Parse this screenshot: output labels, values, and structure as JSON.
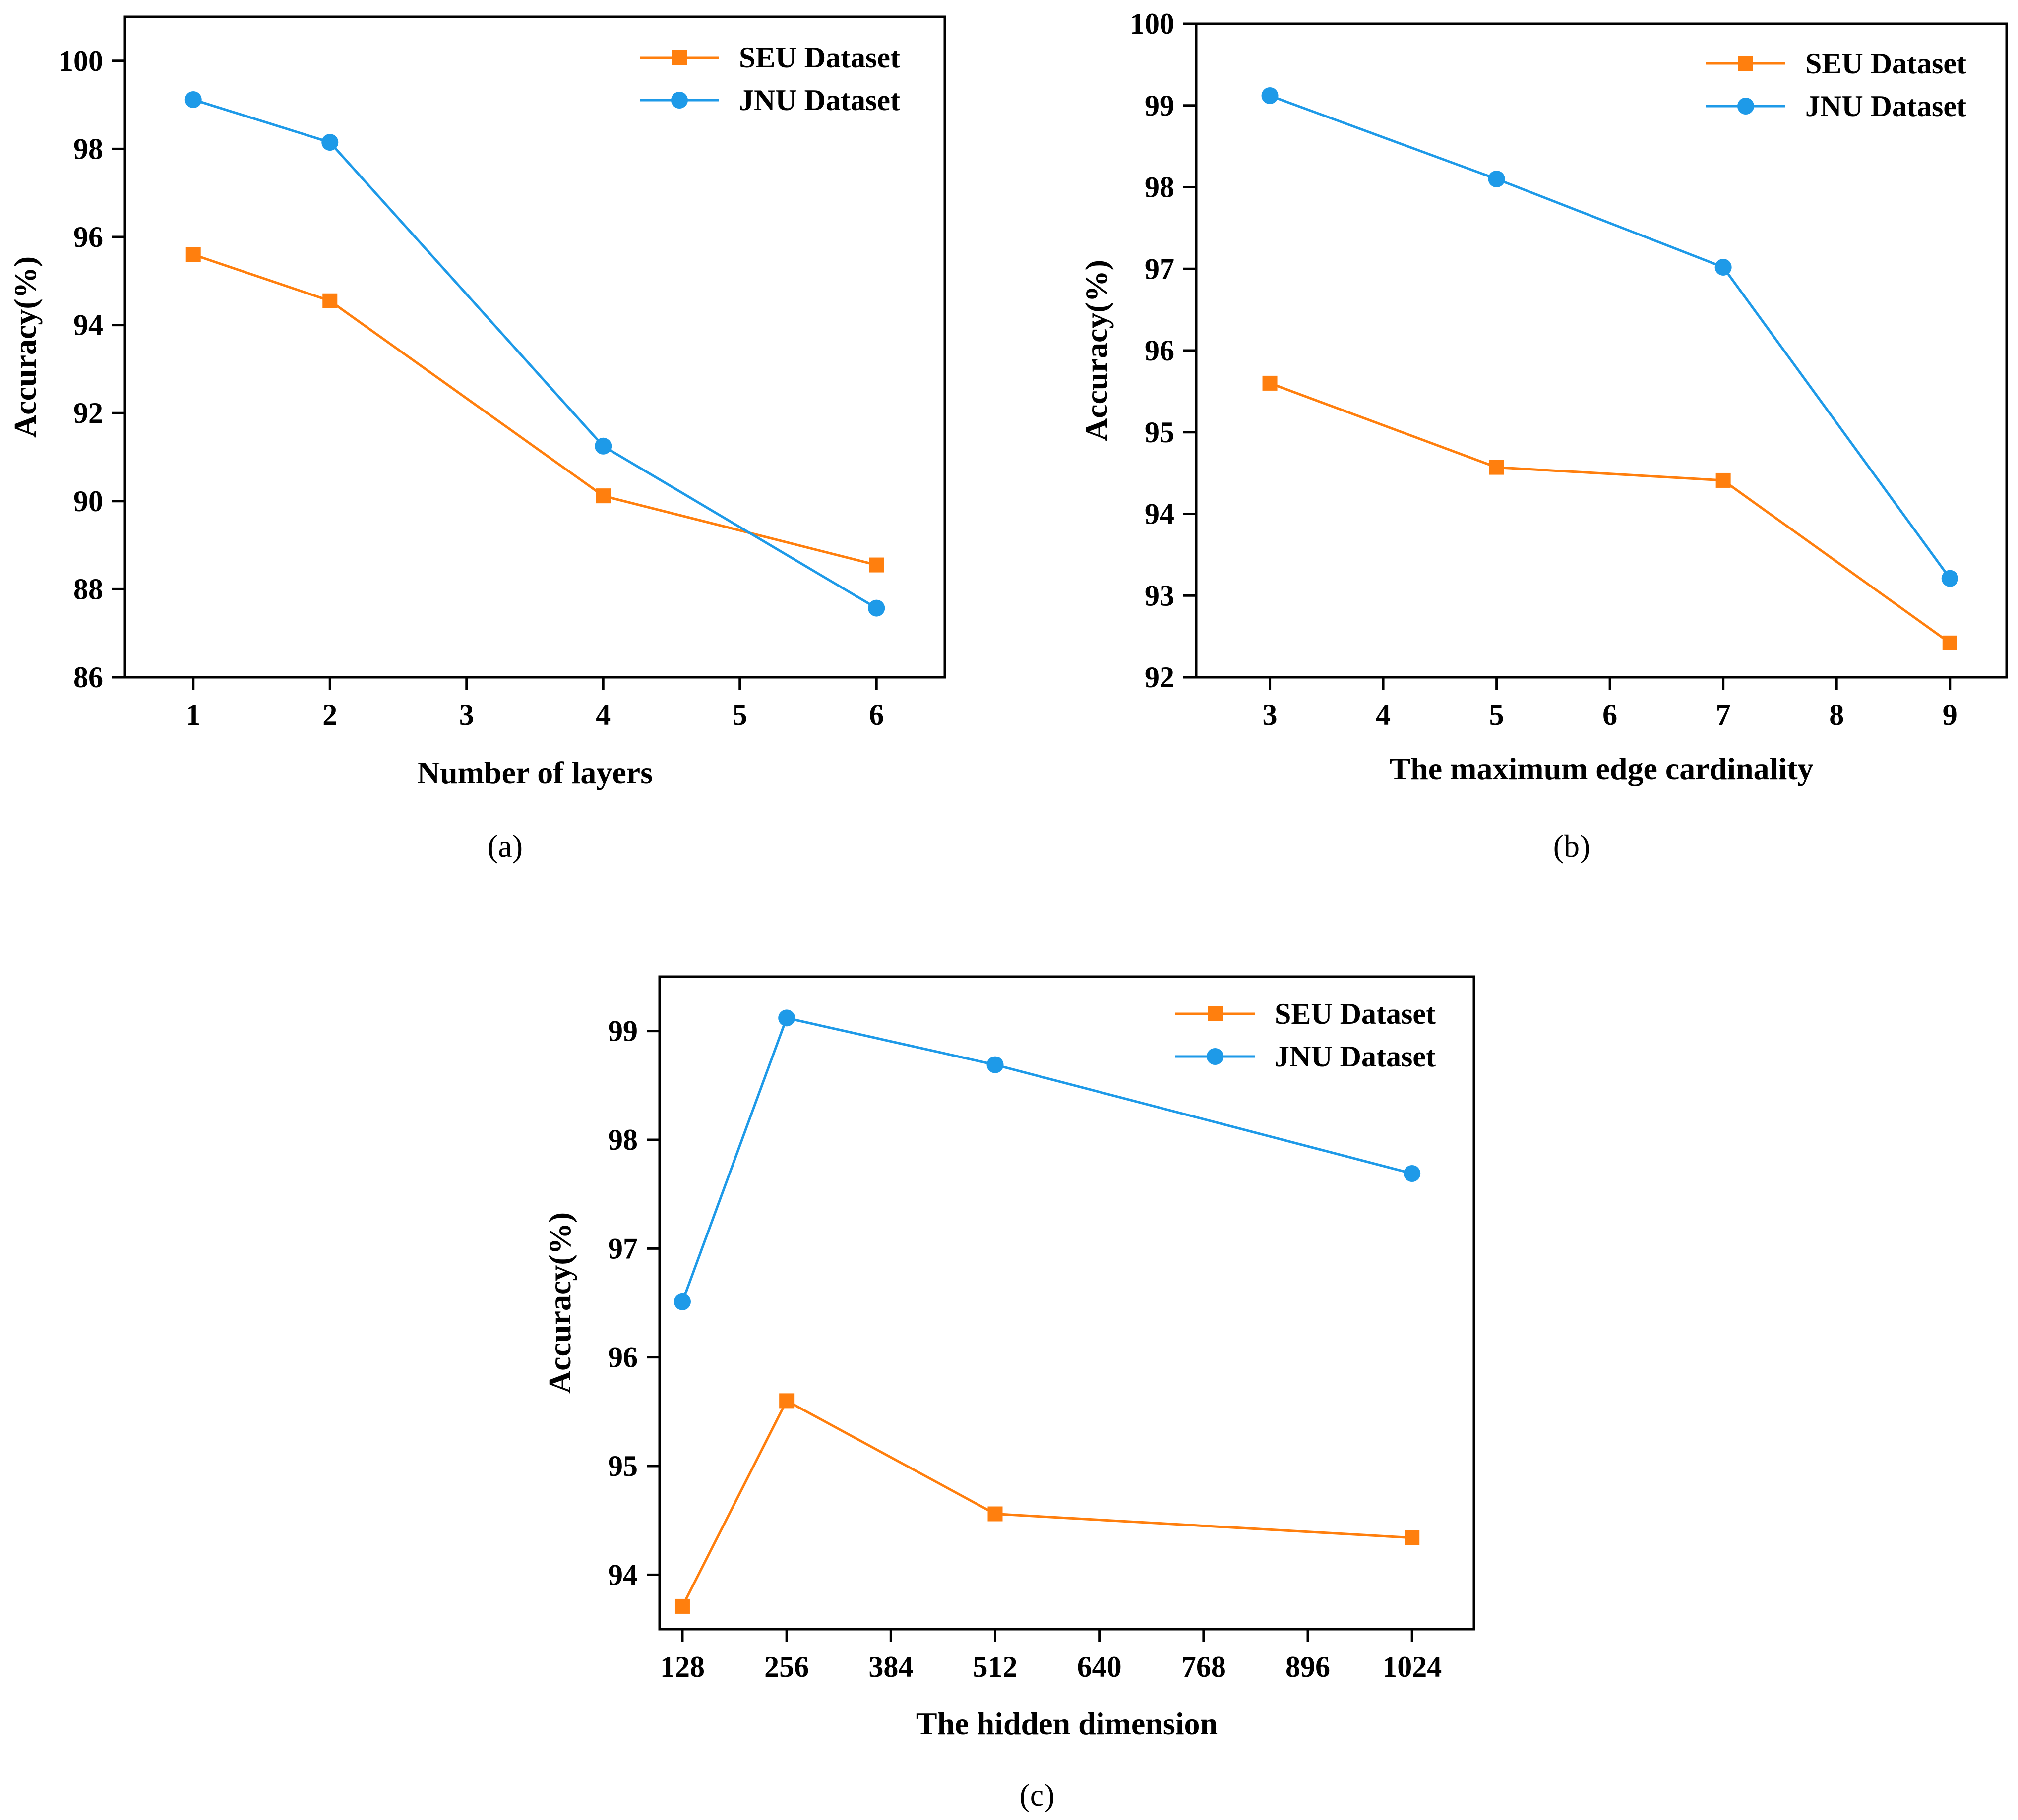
{
  "colors": {
    "seu": "#FF7F0E",
    "jnu": "#1E9AE8",
    "axis": "#000000",
    "background": "#FFFFFF"
  },
  "chart_data": [
    {
      "type": "line",
      "caption": "(a)",
      "xlabel": "Number of layers",
      "ylabel": "Accuracy(%)",
      "xlim": [
        0.5,
        6.5
      ],
      "ylim": [
        86,
        101
      ],
      "xticks": [
        1,
        2,
        3,
        4,
        5,
        6
      ],
      "xtick_labels": [
        "1",
        "2",
        "3",
        "4",
        "5",
        "6"
      ],
      "yticks": [
        86,
        88,
        90,
        92,
        94,
        96,
        98,
        100
      ],
      "ytick_labels": [
        "86",
        "88",
        "90",
        "92",
        "94",
        "96",
        "98",
        "100"
      ],
      "legend_position": "top-right",
      "series": [
        {
          "name": "SEU Dataset",
          "marker": "square",
          "color_key": "seu",
          "x": [
            1,
            2,
            4,
            6
          ],
          "y": [
            95.6,
            94.55,
            90.12,
            88.55
          ]
        },
        {
          "name": "JNU Dataset",
          "marker": "circle",
          "color_key": "jnu",
          "x": [
            1,
            2,
            4,
            6
          ],
          "y": [
            99.12,
            98.15,
            91.25,
            87.57
          ]
        }
      ]
    },
    {
      "type": "line",
      "caption": "(b)",
      "xlabel": "The maximum edge cardinality",
      "ylabel": "Accuracy(%)",
      "xlim": [
        2.35,
        9.5
      ],
      "ylim": [
        92,
        100
      ],
      "xticks": [
        3,
        4,
        5,
        6,
        7,
        8,
        9
      ],
      "xtick_labels": [
        "3",
        "4",
        "5",
        "6",
        "7",
        "8",
        "9"
      ],
      "yticks": [
        92,
        93,
        94,
        95,
        96,
        97,
        98,
        99,
        100
      ],
      "ytick_labels": [
        "92",
        "93",
        "94",
        "95",
        "96",
        "97",
        "98",
        "99",
        "100"
      ],
      "legend_position": "top-right",
      "series": [
        {
          "name": "SEU Dataset",
          "marker": "square",
          "color_key": "seu",
          "x": [
            3,
            5,
            7,
            9
          ],
          "y": [
            95.6,
            94.57,
            94.41,
            92.42
          ]
        },
        {
          "name": "JNU Dataset",
          "marker": "circle",
          "color_key": "jnu",
          "x": [
            3,
            5,
            7,
            9
          ],
          "y": [
            99.12,
            98.1,
            97.02,
            93.21
          ]
        }
      ]
    },
    {
      "type": "line",
      "caption": "(c)",
      "xlabel": "The hidden dimension",
      "ylabel": "Accuracy(%)",
      "xlim": [
        100,
        1100
      ],
      "ylim": [
        93.5,
        99.5
      ],
      "xticks": [
        128,
        256,
        384,
        512,
        640,
        768,
        896,
        1024
      ],
      "xtick_labels": [
        "128",
        "256",
        "384",
        "512",
        "640",
        "768",
        "896",
        "1024"
      ],
      "yticks": [
        94,
        95,
        96,
        97,
        98,
        99
      ],
      "ytick_labels": [
        "94",
        "95",
        "96",
        "97",
        "98",
        "99"
      ],
      "legend_position": "top-right",
      "series": [
        {
          "name": "SEU Dataset",
          "marker": "square",
          "color_key": "seu",
          "x": [
            128,
            256,
            512,
            1024
          ],
          "y": [
            93.71,
            95.6,
            94.56,
            94.34
          ]
        },
        {
          "name": "JNU Dataset",
          "marker": "circle",
          "color_key": "jnu",
          "x": [
            128,
            256,
            512,
            1024
          ],
          "y": [
            96.51,
            99.12,
            98.69,
            97.69
          ]
        }
      ]
    }
  ]
}
